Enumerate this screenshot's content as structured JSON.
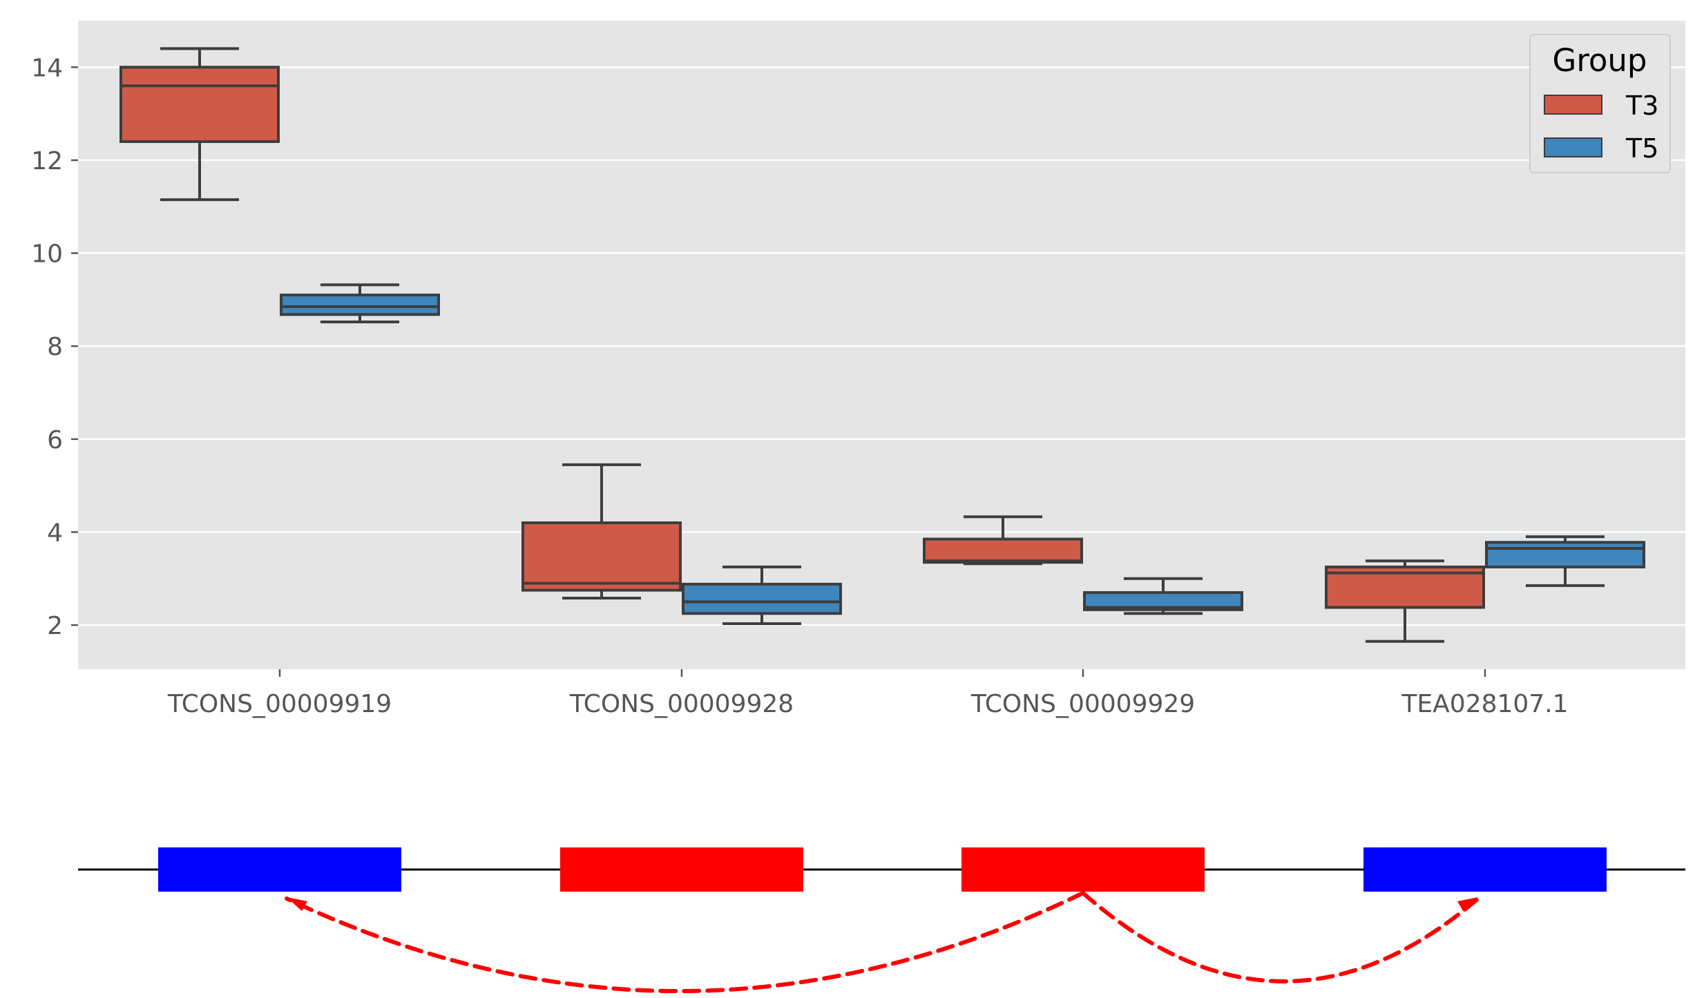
{
  "chart_data": [
    {
      "type": "box",
      "title": "",
      "xlabel": "",
      "ylabel": "",
      "categories": [
        "TCONS_00009919",
        "TCONS_00009928",
        "TCONS_00009929",
        "TEA028107.1"
      ],
      "yticks": [
        "2",
        "4",
        "6",
        "8",
        "10",
        "12",
        "14"
      ],
      "ylim": [
        1.05,
        15.0
      ],
      "grid": true,
      "legend": {
        "title": "Group",
        "placement": "top-right",
        "entries": [
          "T3",
          "T5"
        ]
      },
      "series": [
        {
          "name": "T3",
          "color": "#d05a48",
          "boxes": [
            {
              "whisker_low": 11.15,
              "q1": 12.4,
              "median": 13.6,
              "q3": 14.0,
              "whisker_high": 14.4
            },
            {
              "whisker_low": 2.58,
              "q1": 2.75,
              "median": 2.9,
              "q3": 4.2,
              "whisker_high": 5.45
            },
            {
              "whisker_low": 3.32,
              "q1": 3.35,
              "median": 3.38,
              "q3": 3.85,
              "whisker_high": 4.33
            },
            {
              "whisker_low": 1.65,
              "q1": 2.38,
              "median": 3.12,
              "q3": 3.25,
              "whisker_high": 3.38
            }
          ]
        },
        {
          "name": "T5",
          "color": "#3f86bc",
          "boxes": [
            {
              "whisker_low": 8.52,
              "q1": 8.68,
              "median": 8.85,
              "q3": 9.1,
              "whisker_high": 9.32
            },
            {
              "whisker_low": 2.03,
              "q1": 2.25,
              "median": 2.5,
              "q3": 2.88,
              "whisker_high": 3.25
            },
            {
              "whisker_low": 2.25,
              "q1": 2.33,
              "median": 2.38,
              "q3": 2.7,
              "whisker_high": 3.0
            },
            {
              "whisker_low": 2.85,
              "q1": 3.25,
              "median": 3.65,
              "q3": 3.78,
              "whisker_high": 3.9
            }
          ]
        }
      ]
    },
    {
      "type": "diagram",
      "description_role": "transcript structure track aligned with categories",
      "segments": [
        {
          "category": "TCONS_00009919",
          "color": "#0000ff"
        },
        {
          "category": "TCONS_00009928",
          "color": "#ff0000"
        },
        {
          "category": "TCONS_00009929",
          "color": "#ff0000"
        },
        {
          "category": "TEA028107.1",
          "color": "#0000ff"
        }
      ],
      "arrows": [
        {
          "from": "TCONS_00009929",
          "to": "TCONS_00009919",
          "color": "#ff0000",
          "style": "dashed"
        },
        {
          "from": "TCONS_00009929",
          "to": "TEA028107.1",
          "color": "#ff0000",
          "style": "dashed"
        }
      ]
    }
  ]
}
